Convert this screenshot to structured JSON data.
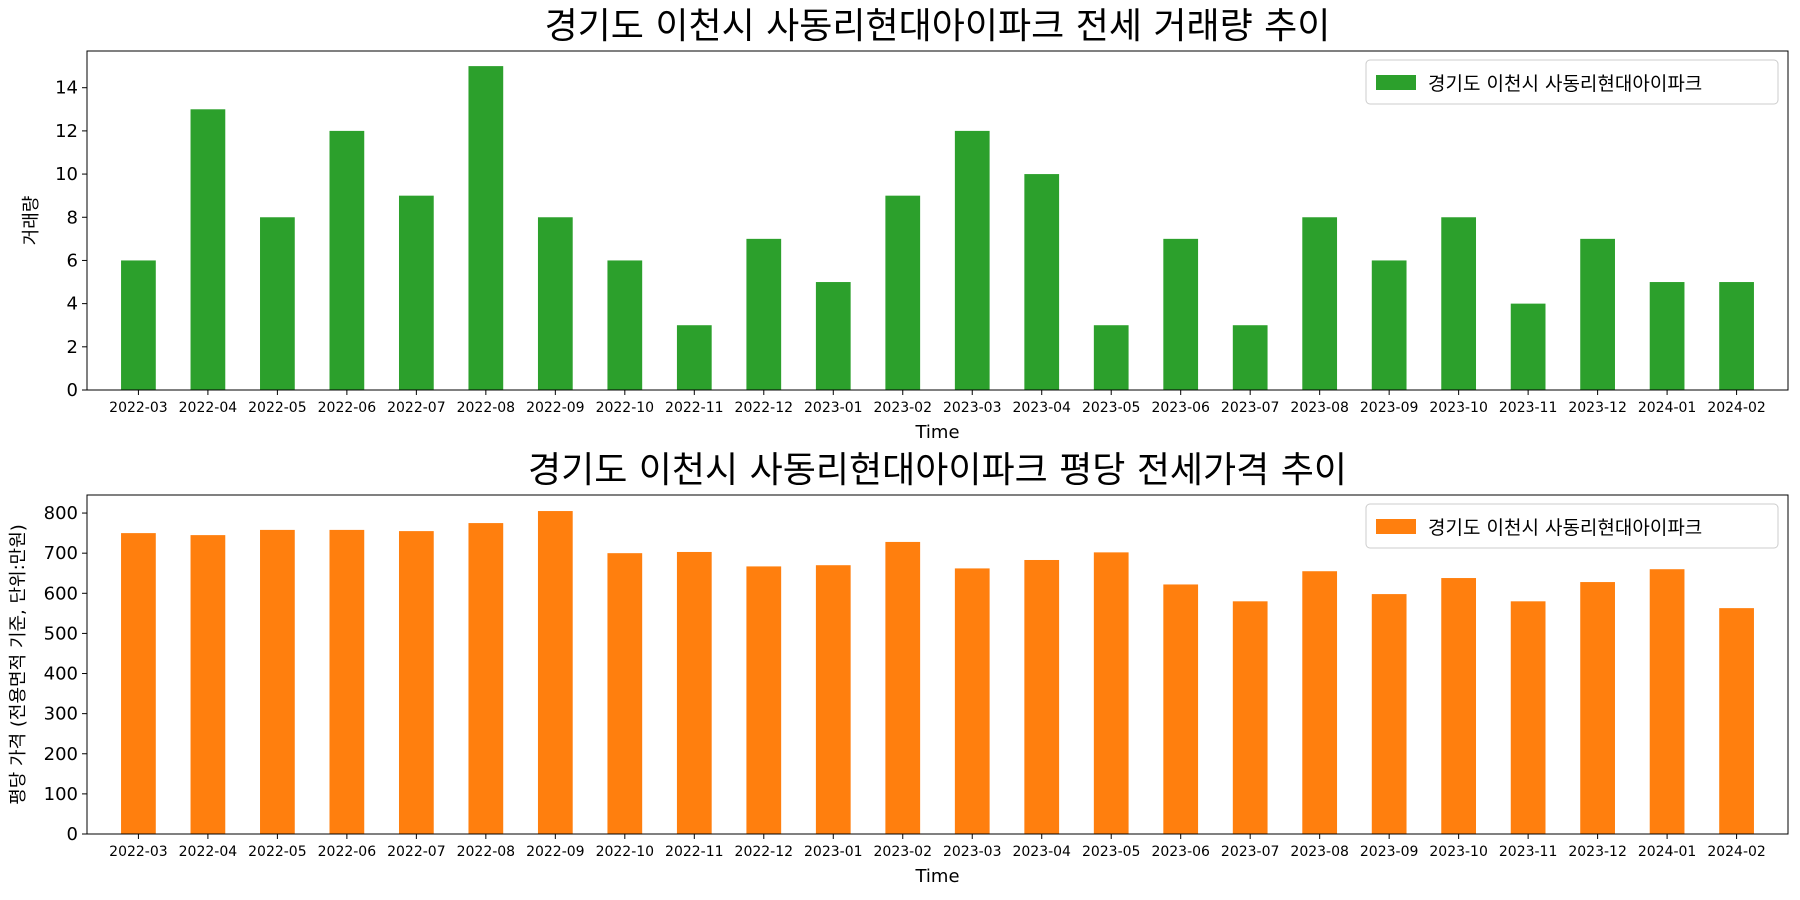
{
  "chart_data": [
    {
      "type": "bar",
      "title": "경기도 이천시 사동리현대아이파크 전세 거래량 추이",
      "xlabel": "Time",
      "ylabel": "거래량",
      "legend": [
        "경기도 이천시 사동리현대아이파크"
      ],
      "legend_position": "top-right",
      "color": "#2ca02c",
      "ylim": [
        0,
        15.7
      ],
      "yticks": [
        0,
        2,
        4,
        6,
        8,
        10,
        12,
        14
      ],
      "categories": [
        "2022-03",
        "2022-04",
        "2022-05",
        "2022-06",
        "2022-07",
        "2022-08",
        "2022-09",
        "2022-10",
        "2022-11",
        "2022-12",
        "2023-01",
        "2023-02",
        "2023-03",
        "2023-04",
        "2023-05",
        "2023-06",
        "2023-07",
        "2023-08",
        "2023-09",
        "2023-10",
        "2023-11",
        "2023-12",
        "2024-01",
        "2024-02"
      ],
      "values": [
        6,
        13,
        8,
        12,
        9,
        15,
        8,
        6,
        3,
        7,
        5,
        9,
        12,
        10,
        3,
        7,
        3,
        8,
        6,
        8,
        4,
        7,
        5,
        5
      ]
    },
    {
      "type": "bar",
      "title": "경기도 이천시 사동리현대아이파크 평당 전세가격 추이",
      "xlabel": "Time",
      "ylabel": "평당 가격 (전용면적 기준, 단위:만원)",
      "legend": [
        "경기도 이천시 사동리현대아이파크"
      ],
      "legend_position": "top-right",
      "color": "#ff7f0e",
      "ylim": [
        0,
        845
      ],
      "yticks": [
        0,
        100,
        200,
        300,
        400,
        500,
        600,
        700,
        800
      ],
      "categories": [
        "2022-03",
        "2022-04",
        "2022-05",
        "2022-06",
        "2022-07",
        "2022-08",
        "2022-09",
        "2022-10",
        "2022-11",
        "2022-12",
        "2023-01",
        "2023-02",
        "2023-03",
        "2023-04",
        "2023-05",
        "2023-06",
        "2023-07",
        "2023-08",
        "2023-09",
        "2023-10",
        "2023-11",
        "2023-12",
        "2024-01",
        "2024-02"
      ],
      "values": [
        750,
        745,
        758,
        758,
        755,
        775,
        805,
        700,
        703,
        667,
        670,
        728,
        662,
        683,
        702,
        622,
        580,
        655,
        598,
        638,
        580,
        628,
        660,
        563
      ]
    }
  ]
}
